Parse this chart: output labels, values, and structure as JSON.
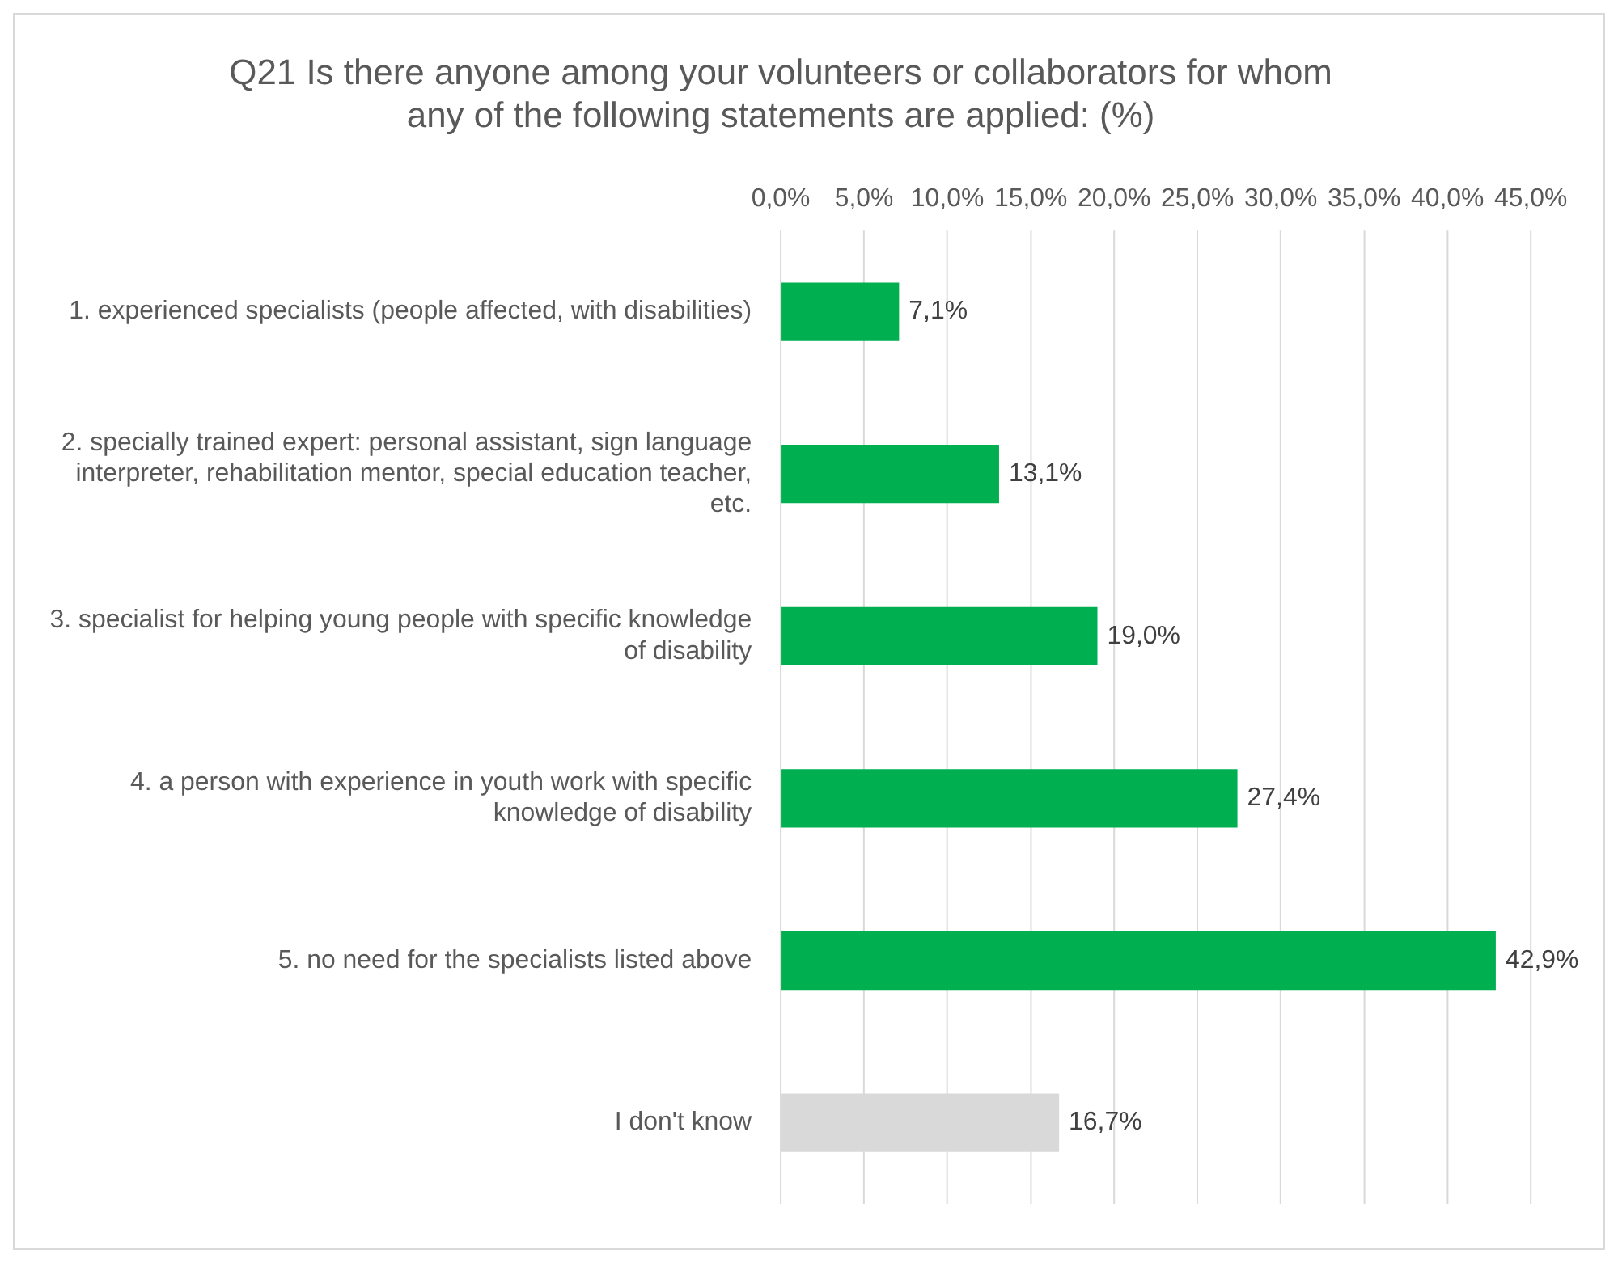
{
  "chart_data": {
    "type": "bar",
    "orientation": "horizontal",
    "title": "Q21 Is there anyone among your volunteers or collaborators for whom any of the following statements are applied: (%)",
    "categories": [
      "1. experienced specialists (people affected, with disabilities)",
      "2. specially trained expert: personal assistant, sign language interpreter, rehabilitation mentor, special education teacher, etc.",
      "3. specialist for helping young people with specific knowledge of disability",
      "4. a person with experience in youth work with specific knowledge of disability",
      "5. no need for the specialists listed above",
      "I don't know"
    ],
    "values": [
      7.1,
      13.1,
      19.0,
      27.4,
      42.9,
      16.7
    ],
    "colors": [
      "#00b050",
      "#00b050",
      "#00b050",
      "#00b050",
      "#00b050",
      "#d9d9d9"
    ],
    "value_labels": [
      "7,1%",
      "13,1%",
      "19,0%",
      "27,4%",
      "42,9%",
      "16,7%"
    ],
    "xlim": [
      0,
      45
    ],
    "xticks": [
      {
        "value": 0,
        "label": "0,0%"
      },
      {
        "value": 5,
        "label": "5,0%"
      },
      {
        "value": 10,
        "label": "10,0%"
      },
      {
        "value": 15,
        "label": "15,0%"
      },
      {
        "value": 20,
        "label": "20,0%"
      },
      {
        "value": 25,
        "label": "25,0%"
      },
      {
        "value": 30,
        "label": "30,0%"
      },
      {
        "value": 35,
        "label": "35,0%"
      },
      {
        "value": 40,
        "label": "40,0%"
      },
      {
        "value": 45,
        "label": "45,0%"
      }
    ],
    "grid": "x",
    "legend": false
  }
}
